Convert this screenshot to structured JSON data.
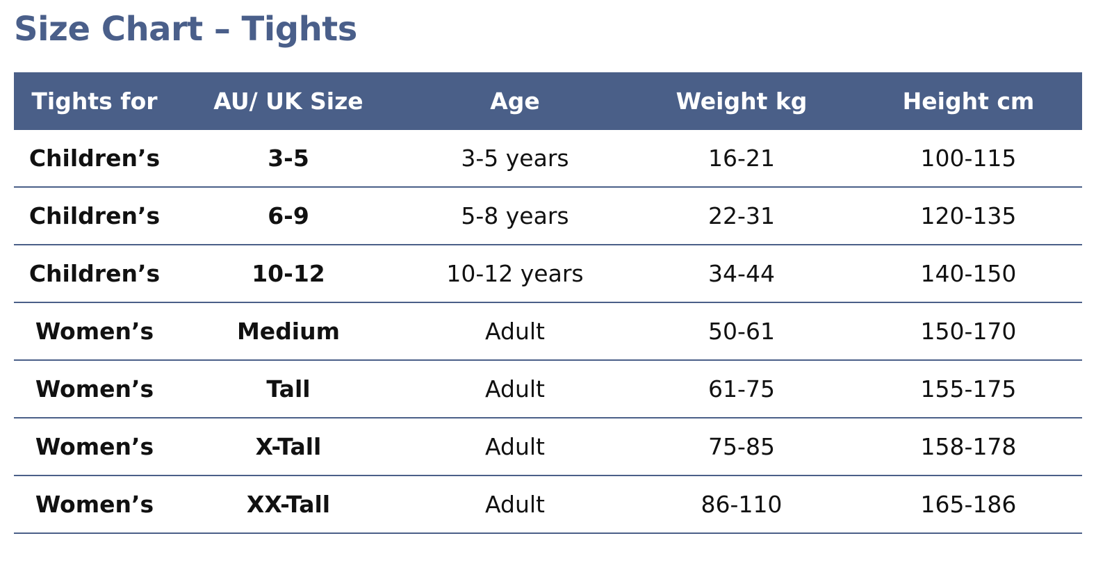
{
  "header": {
    "title": "Size Chart – Tights"
  },
  "table": {
    "columns": [
      "Tights for",
      "AU/ UK Size",
      "Age",
      "Weight kg",
      "Height cm"
    ],
    "rows": [
      [
        "Children’s",
        "3-5",
        "3-5 years",
        "16-21",
        "100-115"
      ],
      [
        "Children’s",
        "6-9",
        "5-8 years",
        "22-31",
        "120-135"
      ],
      [
        "Children’s",
        "10-12",
        "10-12 years",
        "34-44",
        "140-150"
      ],
      [
        "Women’s",
        "Medium",
        "Adult",
        "50-61",
        "150-170"
      ],
      [
        "Women’s",
        "Tall",
        "Adult",
        "61-75",
        "155-175"
      ],
      [
        "Women’s",
        "X-Tall",
        "Adult",
        "75-85",
        "158-178"
      ],
      [
        "Women’s",
        "XX-Tall",
        "Adult",
        "86-110",
        "165-186"
      ]
    ]
  }
}
